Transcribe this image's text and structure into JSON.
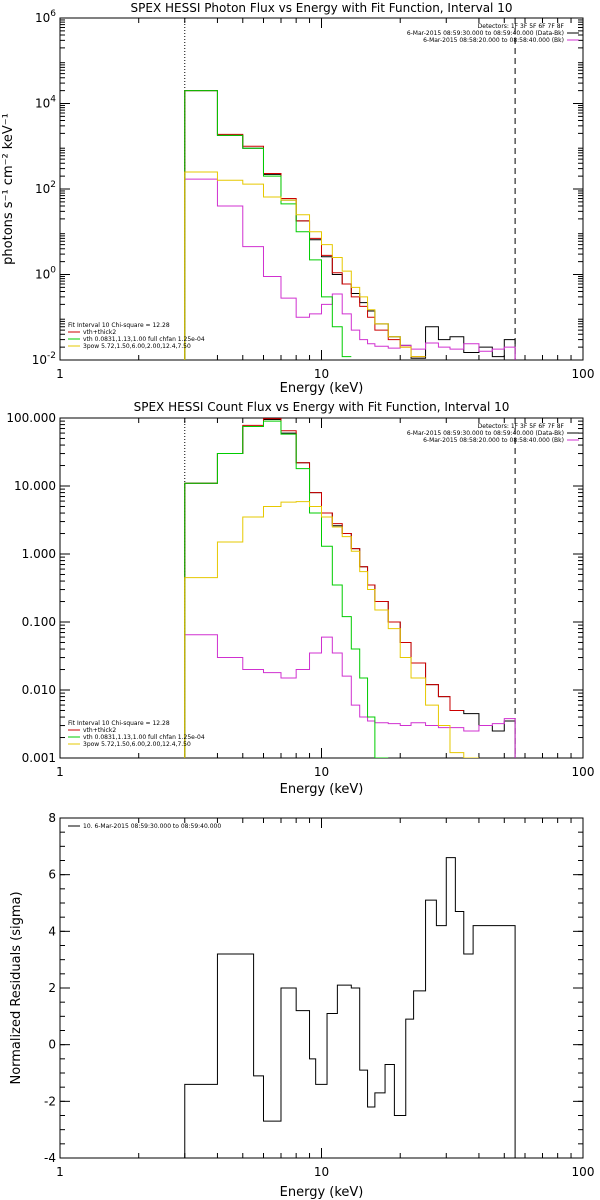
{
  "chart_data": [
    {
      "type": "line",
      "step": true,
      "title": "SPEX HESSI Photon Flux vs Energy with Fit Function, Interval 10",
      "xlabel": "Energy (keV)",
      "ylabel": "photons s⁻¹ cm⁻² keV⁻¹",
      "xscale": "log",
      "yscale": "log",
      "xlim": [
        1,
        100
      ],
      "ylim": [
        0.01,
        1000000
      ],
      "xticks": [
        {
          "v": 1,
          "label": "1"
        },
        {
          "v": 10,
          "label": "10"
        },
        {
          "v": 100,
          "label": "100"
        }
      ],
      "yticks": [
        {
          "v": 0.01,
          "base": "10",
          "exp": "-2"
        },
        {
          "v": 1,
          "base": "10",
          "exp": "0"
        },
        {
          "v": 100,
          "base": "10",
          "exp": "2"
        },
        {
          "v": 10000,
          "base": "10",
          "exp": "4"
        },
        {
          "v": 1000000,
          "base": "10",
          "exp": "6"
        }
      ],
      "vlines": [
        {
          "x": 3,
          "style": "dotted"
        },
        {
          "x": 55,
          "style": "dashed"
        }
      ],
      "legend_right": {
        "position": "top-right",
        "lines": [
          {
            "text": "Detectors: 1F 3F 5F 6F 7F 8F",
            "color": "#000000",
            "swatch": false
          },
          {
            "text": "6-Mar-2015 08:59:30.000 to 08:59:40.000 (Data-Bk)",
            "color": "#000000",
            "swatch": true
          },
          {
            "text": "6-Mar-2015 08:58:20.000 to 08:58:40.000 (Bk)",
            "color": "#d030d0",
            "swatch": true
          }
        ]
      },
      "legend_left": {
        "position": "bottom-left",
        "lines": [
          {
            "text": "Fit Interval 10   Chi-square = 12.28",
            "color": "#000000",
            "swatch": false
          },
          {
            "text": "vth+thick2",
            "color": "#cc0000",
            "swatch": true
          },
          {
            "text": "vth 0.0831,1.13,1.00  full chfan 1.25e-04",
            "color": "#00cc00",
            "swatch": true
          },
          {
            "text": "3pow 5.72,1.50,6.00,2.00,12.4,7.50",
            "color": "#e6c800",
            "swatch": true
          }
        ]
      },
      "x_edges": [
        3.0,
        4.0,
        5.0,
        6.0,
        7.0,
        8.0,
        9.0,
        10.0,
        11.0,
        12.0,
        13.0,
        14.0,
        15.0,
        16.0,
        18.0,
        20.0,
        22.0,
        25.0,
        28.0,
        31.0,
        35.0,
        40.0,
        45.0,
        50.0,
        55.0
      ],
      "series": [
        {
          "name": "Data-Bk",
          "color": "#000000",
          "values": [
            20000,
            1800,
            900,
            220,
            55,
            18,
            6.5,
            2.6,
            1.0,
            0.6,
            0.36,
            0.22,
            0.14,
            0.07,
            0.035,
            0.022,
            0.011,
            0.06,
            0.03,
            0.035,
            0.015,
            0.02,
            0.012,
            0.03
          ]
        },
        {
          "name": "Bk",
          "color": "#d030d0",
          "values": [
            170,
            40,
            4.5,
            0.9,
            0.28,
            0.1,
            0.12,
            0.2,
            0.35,
            0.12,
            0.05,
            0.03,
            0.024,
            0.021,
            0.019,
            0.022,
            0.018,
            0.025,
            0.02,
            0.018,
            0.024,
            0.016,
            0.018,
            0.02
          ]
        },
        {
          "name": "vth+thick2",
          "color": "#cc0000",
          "values": [
            20000,
            1900,
            1000,
            230,
            60,
            18,
            7,
            2.8,
            1.1,
            0.6,
            0.3,
            0.18,
            0.1,
            0.05,
            0.03,
            0.02,
            0.012
          ]
        },
        {
          "name": "vth",
          "color": "#00cc00",
          "values": [
            20000,
            1800,
            900,
            200,
            45,
            10,
            2.2,
            0.3,
            0.06,
            0.012
          ]
        },
        {
          "name": "3pow",
          "color": "#e6c800",
          "values": [
            250,
            160,
            130,
            65,
            55,
            25,
            10,
            5,
            2.5,
            1.2,
            0.5,
            0.3,
            0.15,
            0.07,
            0.035,
            0.02,
            0.012
          ]
        }
      ]
    },
    {
      "type": "line",
      "step": true,
      "title": "SPEX HESSI Count Flux vs Energy with Fit Function, Interval 10",
      "xlabel": "Energy (keV)",
      "ylabel": "",
      "xscale": "log",
      "yscale": "log",
      "xlim": [
        1,
        100
      ],
      "ylim": [
        0.001,
        100
      ],
      "xticks": [
        {
          "v": 1,
          "label": "1"
        },
        {
          "v": 10,
          "label": "10"
        },
        {
          "v": 100,
          "label": "100"
        }
      ],
      "yticks": [
        {
          "v": 0.001,
          "label": "0.001"
        },
        {
          "v": 0.01,
          "label": "0.010"
        },
        {
          "v": 0.1,
          "label": "0.100"
        },
        {
          "v": 1,
          "label": "1.000"
        },
        {
          "v": 10,
          "label": "10.000"
        },
        {
          "v": 100,
          "label": "100.000"
        }
      ],
      "vlines": [
        {
          "x": 3,
          "style": "dotted"
        },
        {
          "x": 55,
          "style": "dashed"
        }
      ],
      "legend_right": {
        "position": "top-right",
        "lines": [
          {
            "text": "Detectors: 1F 3F 5F 6F 7F 8F",
            "color": "#000000",
            "swatch": false
          },
          {
            "text": "6-Mar-2015 08:59:30.000 to 08:59:40.000 (Data-Bk)",
            "color": "#000000",
            "swatch": true
          },
          {
            "text": "6-Mar-2015 08:58:20.000 to 08:58:40.000 (Bk)",
            "color": "#d030d0",
            "swatch": true
          }
        ]
      },
      "legend_left": {
        "position": "bottom-left",
        "lines": [
          {
            "text": "Fit Interval 10   Chi-square = 12.28",
            "color": "#000000",
            "swatch": false
          },
          {
            "text": "vth+thick2",
            "color": "#cc0000",
            "swatch": true
          },
          {
            "text": "vth 0.0831,1.13,1.00  full chfan 1.25e-04",
            "color": "#00cc00",
            "swatch": true
          },
          {
            "text": "3pow 5.72,1.50,6.00,2.00,12.4,7.50",
            "color": "#e6c800",
            "swatch": true
          }
        ]
      },
      "x_edges": [
        3.0,
        4.0,
        5.0,
        6.0,
        7.0,
        8.0,
        9.0,
        10.0,
        11.0,
        12.0,
        13.0,
        14.0,
        15.0,
        16.0,
        18.0,
        20.0,
        22.0,
        25.0,
        28.0,
        31.0,
        35.0,
        40.0,
        45.0,
        50.0,
        55.0
      ],
      "series": [
        {
          "name": "Data-Bk",
          "color": "#000000",
          "values": [
            11,
            30,
            75,
            95,
            60,
            22,
            8,
            4,
            2.6,
            2.0,
            1.2,
            0.65,
            0.35,
            0.2,
            0.1,
            0.05,
            0.025,
            0.012,
            0.008,
            0.005,
            0.0045,
            0.003,
            0.0025,
            0.0035
          ]
        },
        {
          "name": "Bk",
          "color": "#d030d0",
          "values": [
            0.065,
            0.03,
            0.02,
            0.018,
            0.015,
            0.02,
            0.035,
            0.06,
            0.035,
            0.016,
            0.006,
            0.004,
            0.0035,
            0.0033,
            0.0032,
            0.003,
            0.0033,
            0.003,
            0.0028,
            0.0028,
            0.0025,
            0.003,
            0.0032,
            0.0038
          ]
        },
        {
          "name": "vth+thick2",
          "color": "#cc0000",
          "values": [
            11,
            30,
            78,
            98,
            65,
            22,
            8,
            4,
            2.8,
            2.0,
            1.2,
            0.65,
            0.35,
            0.2,
            0.1,
            0.05,
            0.025,
            0.012,
            0.008,
            0.005
          ]
        },
        {
          "name": "vth",
          "color": "#00cc00",
          "values": [
            11,
            30,
            75,
            90,
            58,
            18,
            4,
            1.3,
            0.35,
            0.12,
            0.04,
            0.015,
            0.004,
            0.0008
          ]
        },
        {
          "name": "3pow",
          "color": "#e6c800",
          "values": [
            0.45,
            1.5,
            3.5,
            5.0,
            5.8,
            5.9,
            5.0,
            3.5,
            2.5,
            1.8,
            1.1,
            0.55,
            0.3,
            0.15,
            0.08,
            0.03,
            0.015,
            0.006,
            0.003,
            0.0012,
            0.0006
          ]
        }
      ]
    },
    {
      "type": "line",
      "step": true,
      "title": "",
      "xlabel": "Energy (keV)",
      "ylabel": "Normalized Residuals (sigma)",
      "xscale": "log",
      "yscale": "linear",
      "xlim": [
        1,
        100
      ],
      "ylim": [
        -4,
        8
      ],
      "xticks": [
        {
          "v": 1,
          "label": "1"
        },
        {
          "v": 10,
          "label": "10"
        },
        {
          "v": 100,
          "label": "100"
        }
      ],
      "yticks": [
        {
          "v": -4,
          "label": "-4"
        },
        {
          "v": -2,
          "label": "-2"
        },
        {
          "v": 0,
          "label": "0"
        },
        {
          "v": 2,
          "label": "2"
        },
        {
          "v": 4,
          "label": "4"
        },
        {
          "v": 6,
          "label": "6"
        },
        {
          "v": 8,
          "label": "8"
        }
      ],
      "vlines": [],
      "legend_left": {
        "position": "top-left",
        "lines": [
          {
            "text": "10.  6-Mar-2015 08:59:30.000 to 08:59:40.000",
            "color": "#000000",
            "swatch": true
          }
        ]
      },
      "x_edges": [
        3.0,
        4.0,
        5.0,
        5.5,
        6.0,
        7.0,
        8.0,
        9.0,
        9.5,
        10.5,
        11.5,
        13.0,
        14.0,
        15.0,
        16.0,
        17.5,
        19.0,
        21.0,
        22.5,
        25.0,
        27.5,
        30.0,
        32.5,
        35.0,
        38.0,
        42.0,
        46.0,
        50.0,
        55.0
      ],
      "series": [
        {
          "name": "",
          "color": "#000000",
          "values": [
            -1.4,
            3.2,
            3.2,
            -1.1,
            -2.7,
            2.0,
            1.2,
            -0.5,
            -1.4,
            1.1,
            2.1,
            2.0,
            -0.9,
            -2.2,
            -1.7,
            -0.7,
            -2.5,
            0.9,
            1.9,
            5.1,
            4.2,
            6.6,
            4.7,
            3.2,
            4.2,
            4.2,
            4.2,
            4.2
          ],
          "line_end_value": -4
        }
      ]
    }
  ]
}
